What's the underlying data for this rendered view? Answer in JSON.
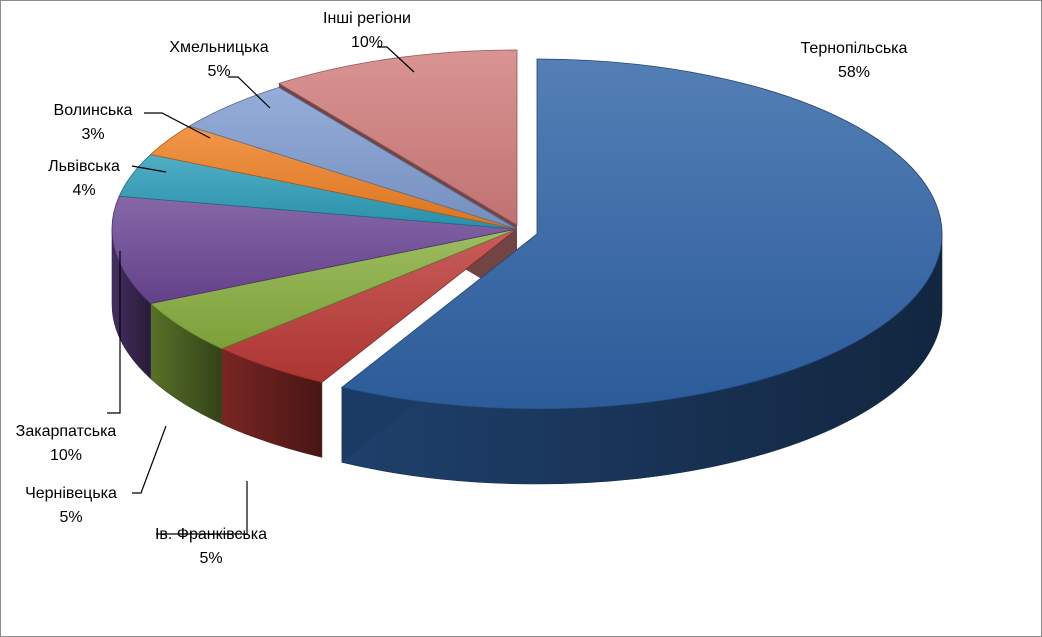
{
  "chart_data": {
    "type": "pie",
    "title": "",
    "style": "3d-exploded",
    "legend": "none",
    "slices": [
      {
        "label": "Тернопільська",
        "value": 58,
        "value_label": "58%",
        "color": "#2f63a6"
      },
      {
        "label": "Ів. Франківська",
        "value": 5,
        "value_label": "5%",
        "color": "#bc3a36"
      },
      {
        "label": "Чернівецька",
        "value": 5,
        "value_label": "5%",
        "color": "#87ae3e"
      },
      {
        "label": "Закарпатська",
        "value": 10,
        "value_label": "10%",
        "color": "#6c4795"
      },
      {
        "label": "Львівська",
        "value": 4,
        "value_label": "4%",
        "color": "#2b9cb8"
      },
      {
        "label": "Волинська",
        "value": 3,
        "value_label": "3%",
        "color": "#ee7f22"
      },
      {
        "label": "Хмельницька",
        "value": 5,
        "value_label": "5%",
        "color": "#7e9bd0"
      },
      {
        "label": "Інші регіони",
        "value": 10,
        "value_label": "10%",
        "color": "#d17c7b"
      }
    ]
  }
}
